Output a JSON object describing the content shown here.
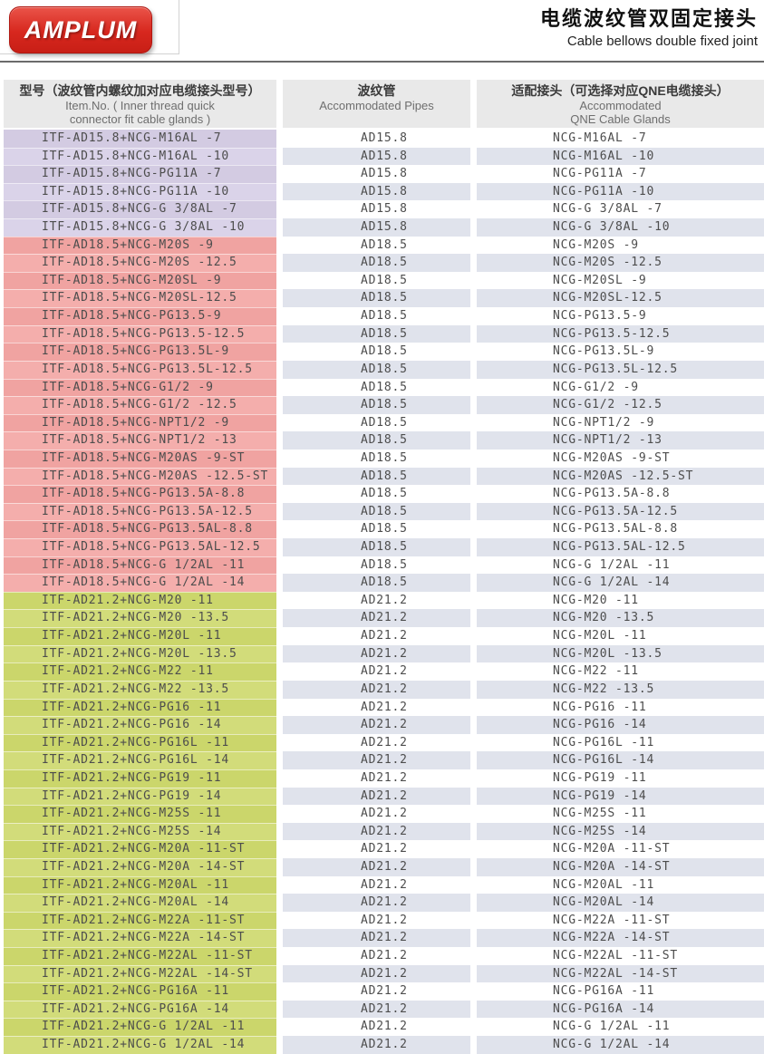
{
  "brand": {
    "logo_text": "AMPLUM",
    "logo_color": "#d7271e"
  },
  "title": {
    "zh": "电缆波纹管双固定接头",
    "en": "Cable bellows double fixed joint"
  },
  "table": {
    "header_bg": "#e9e9e9",
    "alt_row_color": "#e0e3ec",
    "white_row_color": "#ffffff",
    "columns": [
      {
        "zh": "型号（波纹管内螺纹加对应电缆接头型号）",
        "en_lines": [
          "Item.No. ( Inner thread quick",
          "connector fit cable glands )"
        ]
      },
      {
        "zh": "波纹管",
        "en_lines": [
          "Accommodated Pipes"
        ]
      },
      {
        "zh": "适配接头（可选择对应QNE电缆接头）",
        "en_lines": [
          "Accommodated",
          "QNE Cable Glands"
        ]
      }
    ],
    "sections": [
      {
        "pipe": "AD15.8",
        "row_color": "#d3cbe2",
        "row_color_alt": "#dad3e9",
        "rows": [
          [
            "ITF-AD15.8+NCG-M16AL -7",
            "AD15.8",
            "NCG-M16AL -7"
          ],
          [
            "ITF-AD15.8+NCG-M16AL -10",
            "AD15.8",
            "NCG-M16AL -10"
          ],
          [
            "ITF-AD15.8+NCG-PG11A -7",
            "AD15.8",
            "NCG-PG11A -7"
          ],
          [
            "ITF-AD15.8+NCG-PG11A -10",
            "AD15.8",
            "NCG-PG11A -10"
          ],
          [
            "ITF-AD15.8+NCG-G 3/8AL -7",
            "AD15.8",
            "NCG-G 3/8AL -7"
          ],
          [
            "ITF-AD15.8+NCG-G 3/8AL -10",
            "AD15.8",
            "NCG-G 3/8AL -10"
          ]
        ]
      },
      {
        "pipe": "AD18.5",
        "row_color": "#f0a3a1",
        "row_color_alt": "#f4aeac",
        "rows": [
          [
            "ITF-AD18.5+NCG-M20S -9",
            "AD18.5",
            "NCG-M20S -9"
          ],
          [
            "ITF-AD18.5+NCG-M20S -12.5",
            "AD18.5",
            "NCG-M20S -12.5"
          ],
          [
            "ITF-AD18.5+NCG-M20SL -9",
            "AD18.5",
            "NCG-M20SL -9"
          ],
          [
            "ITF-AD18.5+NCG-M20SL-12.5",
            "AD18.5",
            "NCG-M20SL-12.5"
          ],
          [
            "ITF-AD18.5+NCG-PG13.5-9",
            "AD18.5",
            "NCG-PG13.5-9"
          ],
          [
            "ITF-AD18.5+NCG-PG13.5-12.5",
            "AD18.5",
            "NCG-PG13.5-12.5"
          ],
          [
            "ITF-AD18.5+NCG-PG13.5L-9",
            "AD18.5",
            "NCG-PG13.5L-9"
          ],
          [
            "ITF-AD18.5+NCG-PG13.5L-12.5",
            "AD18.5",
            "NCG-PG13.5L-12.5"
          ],
          [
            "ITF-AD18.5+NCG-G1/2 -9",
            "AD18.5",
            "NCG-G1/2 -9"
          ],
          [
            "ITF-AD18.5+NCG-G1/2 -12.5",
            "AD18.5",
            "NCG-G1/2 -12.5"
          ],
          [
            "ITF-AD18.5+NCG-NPT1/2 -9",
            "AD18.5",
            "NCG-NPT1/2 -9"
          ],
          [
            "ITF-AD18.5+NCG-NPT1/2 -13",
            "AD18.5",
            "NCG-NPT1/2 -13"
          ],
          [
            "ITF-AD18.5+NCG-M20AS -9-ST",
            "AD18.5",
            "NCG-M20AS -9-ST"
          ],
          [
            "ITF-AD18.5+NCG-M20AS -12.5-ST",
            "AD18.5",
            "NCG-M20AS -12.5-ST"
          ],
          [
            "ITF-AD18.5+NCG-PG13.5A-8.8",
            "AD18.5",
            "NCG-PG13.5A-8.8"
          ],
          [
            "ITF-AD18.5+NCG-PG13.5A-12.5",
            "AD18.5",
            "NCG-PG13.5A-12.5"
          ],
          [
            "ITF-AD18.5+NCG-PG13.5AL-8.8",
            "AD18.5",
            "NCG-PG13.5AL-8.8"
          ],
          [
            "ITF-AD18.5+NCG-PG13.5AL-12.5",
            "AD18.5",
            "NCG-PG13.5AL-12.5"
          ],
          [
            "ITF-AD18.5+NCG-G 1/2AL -11",
            "AD18.5",
            "NCG-G 1/2AL -11"
          ],
          [
            "ITF-AD18.5+NCG-G 1/2AL -14",
            "AD18.5",
            "NCG-G 1/2AL -14"
          ]
        ]
      },
      {
        "pipe": "AD21.2",
        "row_color": "#cbd66b",
        "row_color_alt": "#d2dc7a",
        "rows": [
          [
            "ITF-AD21.2+NCG-M20 -11",
            "AD21.2",
            "NCG-M20 -11"
          ],
          [
            "ITF-AD21.2+NCG-M20 -13.5",
            "AD21.2",
            "NCG-M20 -13.5"
          ],
          [
            "ITF-AD21.2+NCG-M20L -11",
            "AD21.2",
            "NCG-M20L -11"
          ],
          [
            "ITF-AD21.2+NCG-M20L -13.5",
            "AD21.2",
            "NCG-M20L -13.5"
          ],
          [
            "ITF-AD21.2+NCG-M22 -11",
            "AD21.2",
            "NCG-M22 -11"
          ],
          [
            "ITF-AD21.2+NCG-M22 -13.5",
            "AD21.2",
            "NCG-M22 -13.5"
          ],
          [
            "ITF-AD21.2+NCG-PG16 -11",
            "AD21.2",
            "NCG-PG16 -11"
          ],
          [
            "ITF-AD21.2+NCG-PG16 -14",
            "AD21.2",
            "NCG-PG16 -14"
          ],
          [
            "ITF-AD21.2+NCG-PG16L -11",
            "AD21.2",
            "NCG-PG16L -11"
          ],
          [
            "ITF-AD21.2+NCG-PG16L -14",
            "AD21.2",
            "NCG-PG16L -14"
          ],
          [
            "ITF-AD21.2+NCG-PG19 -11",
            "AD21.2",
            "NCG-PG19 -11"
          ],
          [
            "ITF-AD21.2+NCG-PG19 -14",
            "AD21.2",
            "NCG-PG19 -14"
          ],
          [
            "ITF-AD21.2+NCG-M25S -11",
            "AD21.2",
            "NCG-M25S -11"
          ],
          [
            "ITF-AD21.2+NCG-M25S -14",
            "AD21.2",
            "NCG-M25S -14"
          ],
          [
            "ITF-AD21.2+NCG-M20A -11-ST",
            "AD21.2",
            "NCG-M20A -11-ST"
          ],
          [
            "ITF-AD21.2+NCG-M20A -14-ST",
            "AD21.2",
            "NCG-M20A -14-ST"
          ],
          [
            "ITF-AD21.2+NCG-M20AL -11",
            "AD21.2",
            "NCG-M20AL -11"
          ],
          [
            "ITF-AD21.2+NCG-M20AL -14",
            "AD21.2",
            "NCG-M20AL -14"
          ],
          [
            "ITF-AD21.2+NCG-M22A -11-ST",
            "AD21.2",
            "NCG-M22A -11-ST"
          ],
          [
            "ITF-AD21.2+NCG-M22A -14-ST",
            "AD21.2",
            "NCG-M22A -14-ST"
          ],
          [
            "ITF-AD21.2+NCG-M22AL -11-ST",
            "AD21.2",
            "NCG-M22AL -11-ST"
          ],
          [
            "ITF-AD21.2+NCG-M22AL -14-ST",
            "AD21.2",
            "NCG-M22AL -14-ST"
          ],
          [
            "ITF-AD21.2+NCG-PG16A -11",
            "AD21.2",
            "NCG-PG16A -11"
          ],
          [
            "ITF-AD21.2+NCG-PG16A -14",
            "AD21.2",
            "NCG-PG16A -14"
          ],
          [
            "ITF-AD21.2+NCG-G 1/2AL -11",
            "AD21.2",
            "NCG-G 1/2AL -11"
          ],
          [
            "ITF-AD21.2+NCG-G 1/2AL -14",
            "AD21.2",
            "NCG-G 1/2AL -14"
          ]
        ]
      }
    ]
  }
}
